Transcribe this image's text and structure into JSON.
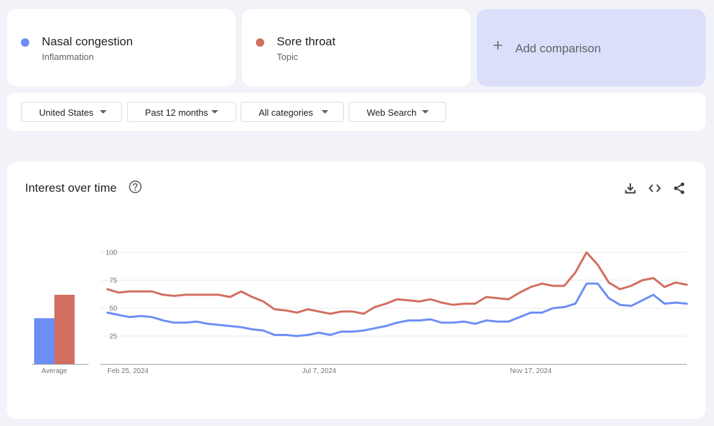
{
  "terms": [
    {
      "name": "Nasal congestion",
      "type": "Inflammation",
      "color": "#6c8ef5"
    },
    {
      "name": "Sore throat",
      "type": "Topic",
      "color": "#d26e5f"
    }
  ],
  "add_comparison": {
    "label": "Add comparison"
  },
  "filters": [
    {
      "label": "United States"
    },
    {
      "label": "Past 12 months"
    },
    {
      "label": "All categories"
    },
    {
      "label": "Web Search"
    }
  ],
  "panel": {
    "title": "Interest over time",
    "icons": [
      "help-icon",
      "download-icon",
      "embed-code-icon",
      "share-icon"
    ]
  },
  "chart_data": [
    {
      "type": "bar",
      "categories": [
        "Average"
      ],
      "series": [
        {
          "name": "Nasal congestion",
          "values": [
            41
          ],
          "color": "#6c8ef5"
        },
        {
          "name": "Sore throat",
          "values": [
            62
          ],
          "color": "#d26e5f"
        }
      ],
      "xlabel": "Average",
      "ylim": [
        0,
        100
      ]
    },
    {
      "type": "line",
      "x_start": "Feb 25, 2024",
      "x_interval": "1 week",
      "x_tick_labels": [
        "Feb 25, 2024",
        "Jul 7, 2024",
        "Nov 17, 2024"
      ],
      "y_ticks": [
        25,
        50,
        75,
        100
      ],
      "ylim": [
        0,
        100
      ],
      "grid": true,
      "series": [
        {
          "name": "Nasal congestion",
          "color": "#6c8ef5",
          "values": [
            46,
            44,
            42,
            43,
            42,
            39,
            37,
            37,
            38,
            36,
            35,
            34,
            33,
            31,
            30,
            26,
            26,
            25,
            26,
            28,
            26,
            29,
            29,
            30,
            32,
            34,
            37,
            39,
            39,
            40,
            37,
            37,
            38,
            36,
            39,
            38,
            38,
            42,
            46,
            46,
            50,
            51,
            54,
            72,
            72,
            59,
            53,
            52,
            57,
            62,
            54,
            55,
            54
          ]
        },
        {
          "name": "Sore throat",
          "color": "#d26e5f",
          "values": [
            67,
            64,
            65,
            65,
            65,
            62,
            61,
            62,
            62,
            62,
            62,
            60,
            65,
            60,
            56,
            49,
            48,
            46,
            49,
            47,
            45,
            47,
            47,
            45,
            51,
            54,
            58,
            57,
            56,
            58,
            55,
            53,
            54,
            54,
            60,
            59,
            58,
            64,
            69,
            72,
            70,
            70,
            82,
            100,
            89,
            73,
            67,
            70,
            75,
            77,
            69,
            73,
            71
          ]
        }
      ]
    }
  ]
}
